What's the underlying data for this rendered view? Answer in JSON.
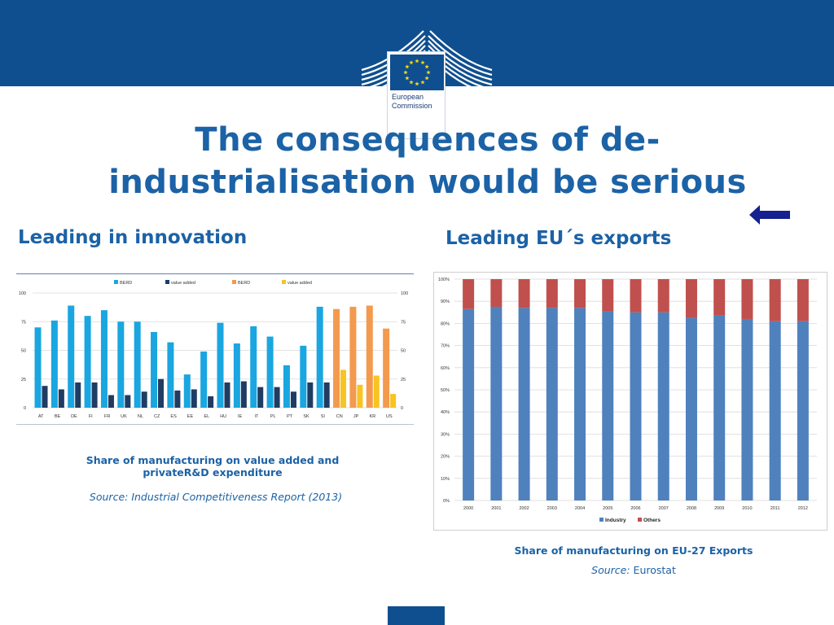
{
  "logo": {
    "line1": "European",
    "line2": "Commission"
  },
  "title": {
    "line1": "The consequences of de-",
    "line2": "industrialisation would be serious"
  },
  "left": {
    "heading": "Leading in innovation",
    "caption_line1": "Share of manufacturing on value added and",
    "caption_line2": "privateR&D expenditure",
    "source": "Source: Industrial Competitiveness Report (2013)"
  },
  "right": {
    "heading": "Leading EU´s exports",
    "caption": "Share of manufacturing on EU-27 Exports",
    "source_label": "Source:",
    "source_value": "Eurostat"
  },
  "colors": {
    "berd_eu": "#1aa6e0",
    "va_eu": "#1f3c63",
    "berd_non_eu": "#f39a4e",
    "va_non_eu": "#f7c421",
    "industry": "#4f81bd",
    "others": "#c0504d"
  },
  "chart_data": [
    {
      "type": "bar",
      "legend": [
        "BERD",
        "value added",
        "BERD",
        "value added"
      ],
      "categories": [
        "AT",
        "BE",
        "DE",
        "FI",
        "FR",
        "UK",
        "NL",
        "CZ",
        "ES",
        "EE",
        "EL",
        "HU",
        "IE",
        "IT",
        "PL",
        "PT",
        "SK",
        "SI",
        "CN",
        "JP",
        "KR",
        "US"
      ],
      "series": [
        {
          "name": "BERD",
          "values": [
            70,
            76,
            89,
            80,
            85,
            75,
            75,
            66,
            57,
            29,
            49,
            74,
            56,
            71,
            62,
            37,
            54,
            88,
            86,
            88,
            89,
            69
          ]
        },
        {
          "name": "value added",
          "values": [
            19,
            16,
            22,
            22,
            11,
            11,
            14,
            25,
            15,
            16,
            10,
            22,
            23,
            18,
            18,
            14,
            22,
            22,
            33,
            20,
            28,
            12
          ]
        }
      ],
      "ylim": [
        0,
        100
      ],
      "yticks": [
        "0",
        "25",
        "50",
        "75",
        "100"
      ],
      "right_axis_ticks": [
        "0",
        "25",
        "50",
        "75",
        "100"
      ]
    },
    {
      "type": "bar",
      "stacked": true,
      "categories": [
        "2000",
        "2001",
        "2002",
        "2003",
        "2004",
        "2005",
        "2006",
        "2007",
        "2008",
        "2009",
        "2010",
        "2011",
        "2012"
      ],
      "series": [
        {
          "name": "Industry",
          "values": [
            86.5,
            87.5,
            87,
            87,
            87,
            85.5,
            85,
            85,
            82.5,
            83.5,
            82,
            81,
            81
          ]
        },
        {
          "name": "Others",
          "values": [
            13.5,
            12.5,
            13,
            13,
            13,
            14.5,
            15,
            15,
            17.5,
            16.5,
            18,
            19,
            19
          ]
        }
      ],
      "yticks": [
        "0%",
        "10%",
        "20%",
        "30%",
        "40%",
        "50%",
        "60%",
        "70%",
        "80%",
        "90%",
        "100%"
      ],
      "ylim": [
        0,
        100
      ],
      "legend_position": "bottom"
    }
  ]
}
